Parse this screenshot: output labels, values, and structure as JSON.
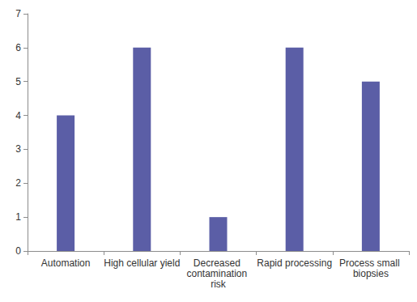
{
  "chart_data": {
    "type": "bar",
    "categories": [
      "Automation",
      "High cellular yield",
      "Decreased contamination risk",
      "Rapid processing",
      "Process small biopsies"
    ],
    "values": [
      4,
      6,
      1,
      6,
      5
    ],
    "color": "#5b5ea6",
    "ylim": [
      0,
      7
    ],
    "yticks": [
      0,
      1,
      2,
      3,
      4,
      5,
      6,
      7
    ],
    "grid": false
  }
}
